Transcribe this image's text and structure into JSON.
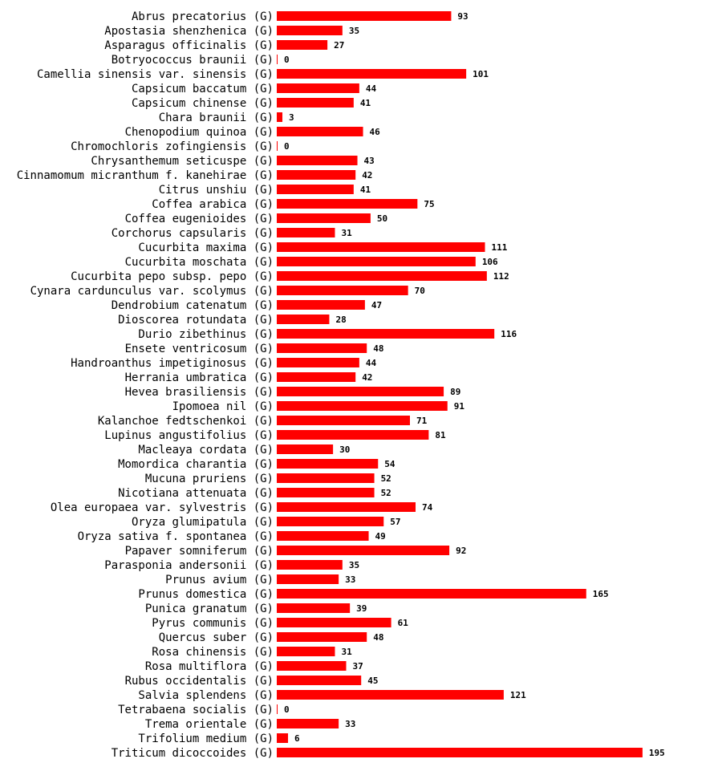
{
  "chart_data": {
    "type": "bar",
    "orientation": "horizontal",
    "bar_color": "#ff0000",
    "suffix": "(G)",
    "categories": [
      "Abrus precatorius",
      "Apostasia shenzhenica",
      "Asparagus officinalis",
      "Botryococcus braunii",
      "Camellia sinensis var. sinensis",
      "Capsicum baccatum",
      "Capsicum chinense",
      "Chara braunii",
      "Chenopodium quinoa",
      "Chromochloris zofingiensis",
      "Chrysanthemum seticuspe",
      "Cinnamomum micranthum f. kanehirae",
      "Citrus unshiu",
      "Coffea arabica",
      "Coffea eugenioides",
      "Corchorus capsularis",
      "Cucurbita maxima",
      "Cucurbita moschata",
      "Cucurbita pepo subsp. pepo",
      "Cynara cardunculus var. scolymus",
      "Dendrobium catenatum",
      "Dioscorea rotundata",
      "Durio zibethinus",
      "Ensete ventricosum",
      "Handroanthus impetiginosus",
      "Herrania umbratica",
      "Hevea brasiliensis",
      "Ipomoea nil",
      "Kalanchoe fedtschenkoi",
      "Lupinus angustifolius",
      "Macleaya cordata",
      "Momordica charantia",
      "Mucuna pruriens",
      "Nicotiana attenuata",
      "Olea europaea var. sylvestris",
      "Oryza glumipatula",
      "Oryza sativa f. spontanea",
      "Papaver somniferum",
      "Parasponia andersonii",
      "Prunus avium",
      "Prunus domestica",
      "Punica granatum",
      "Pyrus communis",
      "Quercus suber",
      "Rosa chinensis",
      "Rosa multiflora",
      "Rubus occidentalis",
      "Salvia splendens",
      "Tetrabaena socialis",
      "Trema orientale",
      "Trifolium medium",
      "Triticum dicoccoides"
    ],
    "values": [
      93,
      35,
      27,
      0,
      101,
      44,
      41,
      3,
      46,
      0,
      43,
      42,
      41,
      75,
      50,
      31,
      111,
      106,
      112,
      70,
      47,
      28,
      116,
      48,
      44,
      42,
      89,
      91,
      71,
      81,
      30,
      54,
      52,
      52,
      74,
      57,
      49,
      92,
      35,
      33,
      165,
      39,
      61,
      48,
      31,
      37,
      45,
      121,
      0,
      33,
      6,
      195
    ]
  }
}
